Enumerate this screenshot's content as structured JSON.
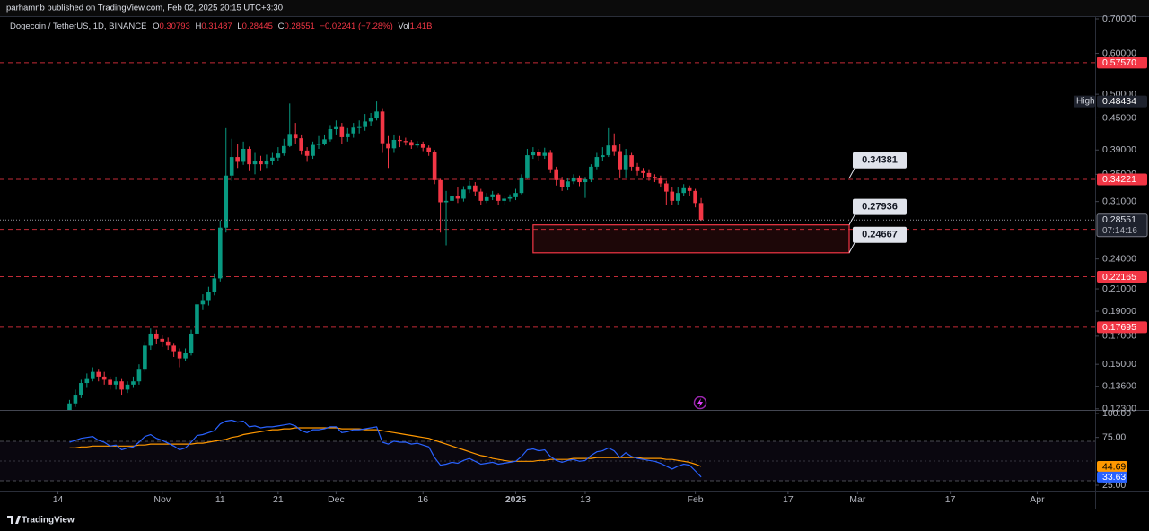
{
  "header": {
    "publisher": "parhamnb published on TradingView.com, Feb 02, 2025 20:15 UTC+3:30"
  },
  "chart_data": {
    "type": "candlestick",
    "title": "Dogecoin / TetherUS, 1D, BINANCE",
    "legend": {
      "o": "O",
      "h": "H",
      "l": "L",
      "c": "C",
      "change": "−0.02241 (−7.28%)",
      "vol_label": "Vol",
      "vol": "1.41B"
    },
    "x": [
      "2024-10-16",
      "2024-10-17",
      "2024-10-18",
      "2024-10-19",
      "2024-10-20",
      "2024-10-21",
      "2024-10-22",
      "2024-10-23",
      "2024-10-24",
      "2024-10-25",
      "2024-10-26",
      "2024-10-27",
      "2024-10-28",
      "2024-10-29",
      "2024-10-30",
      "2024-10-31",
      "2024-11-01",
      "2024-11-02",
      "2024-11-03",
      "2024-11-04",
      "2024-11-05",
      "2024-11-06",
      "2024-11-07",
      "2024-11-08",
      "2024-11-09",
      "2024-11-10",
      "2024-11-11",
      "2024-11-12",
      "2024-11-13",
      "2024-11-14",
      "2024-11-15",
      "2024-11-16",
      "2024-11-17",
      "2024-11-18",
      "2024-11-19",
      "2024-11-20",
      "2024-11-21",
      "2024-11-22",
      "2024-11-23",
      "2024-11-24",
      "2024-11-25",
      "2024-11-26",
      "2024-11-27",
      "2024-11-28",
      "2024-11-29",
      "2024-11-30",
      "2024-12-01",
      "2024-12-02",
      "2024-12-03",
      "2024-12-04",
      "2024-12-05",
      "2024-12-06",
      "2024-12-07",
      "2024-12-08",
      "2024-12-09",
      "2024-12-10",
      "2024-12-11",
      "2024-12-12",
      "2024-12-13",
      "2024-12-14",
      "2024-12-15",
      "2024-12-16",
      "2024-12-17",
      "2024-12-18",
      "2024-12-19",
      "2024-12-20",
      "2024-12-21",
      "2024-12-22",
      "2024-12-23",
      "2024-12-24",
      "2024-12-25",
      "2024-12-26",
      "2024-12-27",
      "2024-12-28",
      "2024-12-29",
      "2024-12-30",
      "2024-12-31",
      "2025-01-01",
      "2025-01-02",
      "2025-01-03",
      "2025-01-04",
      "2025-01-05",
      "2025-01-06",
      "2025-01-07",
      "2025-01-08",
      "2025-01-09",
      "2025-01-10",
      "2025-01-11",
      "2025-01-12",
      "2025-01-13",
      "2025-01-14",
      "2025-01-15",
      "2025-01-16",
      "2025-01-17",
      "2025-01-18",
      "2025-01-19",
      "2025-01-20",
      "2025-01-21",
      "2025-01-22",
      "2025-01-23",
      "2025-01-24",
      "2025-01-25",
      "2025-01-26",
      "2025-01-27",
      "2025-01-28",
      "2025-01-29",
      "2025-01-30",
      "2025-01-31",
      "2025-02-01",
      "2025-02-02"
    ],
    "open": [
      0.121,
      0.126,
      0.131,
      0.138,
      0.141,
      0.145,
      0.142,
      0.14,
      0.137,
      0.139,
      0.134,
      0.137,
      0.139,
      0.147,
      0.163,
      0.172,
      0.168,
      0.166,
      0.163,
      0.159,
      0.154,
      0.158,
      0.172,
      0.196,
      0.199,
      0.207,
      0.22,
      0.276,
      0.348,
      0.378,
      0.37,
      0.392,
      0.366,
      0.372,
      0.366,
      0.372,
      0.377,
      0.384,
      0.397,
      0.419,
      0.411,
      0.389,
      0.38,
      0.399,
      0.401,
      0.409,
      0.428,
      0.432,
      0.413,
      0.42,
      0.431,
      0.432,
      0.443,
      0.449,
      0.463,
      0.402,
      0.393,
      0.408,
      0.406,
      0.404,
      0.398,
      0.401,
      0.394,
      0.387,
      0.341,
      0.309,
      0.311,
      0.318,
      0.314,
      0.327,
      0.333,
      0.324,
      0.311,
      0.316,
      0.32,
      0.311,
      0.314,
      0.316,
      0.322,
      0.345,
      0.381,
      0.386,
      0.38,
      0.385,
      0.358,
      0.341,
      0.331,
      0.339,
      0.345,
      0.338,
      0.342,
      0.362,
      0.378,
      0.381,
      0.398,
      0.388,
      0.358,
      0.381,
      0.362,
      0.355,
      0.352,
      0.346,
      0.344,
      0.336,
      0.324,
      0.311,
      0.322,
      0.329,
      0.325,
      0.30793
    ],
    "high": [
      0.128,
      0.134,
      0.14,
      0.144,
      0.148,
      0.147,
      0.145,
      0.142,
      0.142,
      0.141,
      0.139,
      0.142,
      0.15,
      0.166,
      0.176,
      0.175,
      0.171,
      0.169,
      0.165,
      0.161,
      0.161,
      0.175,
      0.2,
      0.205,
      0.212,
      0.225,
      0.285,
      0.43,
      0.41,
      0.4,
      0.405,
      0.396,
      0.385,
      0.38,
      0.382,
      0.385,
      0.395,
      0.41,
      0.48,
      0.44,
      0.418,
      0.395,
      0.405,
      0.415,
      0.418,
      0.436,
      0.445,
      0.44,
      0.43,
      0.44,
      0.445,
      0.458,
      0.46,
      0.48434,
      0.47,
      0.415,
      0.418,
      0.415,
      0.412,
      0.408,
      0.406,
      0.405,
      0.398,
      0.39,
      0.343,
      0.325,
      0.326,
      0.33,
      0.332,
      0.34,
      0.338,
      0.328,
      0.322,
      0.325,
      0.322,
      0.318,
      0.32,
      0.328,
      0.35,
      0.392,
      0.395,
      0.392,
      0.394,
      0.39,
      0.362,
      0.346,
      0.344,
      0.35,
      0.348,
      0.346,
      0.366,
      0.385,
      0.395,
      0.43,
      0.42,
      0.4,
      0.392,
      0.385,
      0.368,
      0.36,
      0.358,
      0.35,
      0.348,
      0.34,
      0.33,
      0.33,
      0.335,
      0.333,
      0.328,
      0.31487
    ],
    "low": [
      0.119,
      0.124,
      0.129,
      0.135,
      0.139,
      0.139,
      0.137,
      0.134,
      0.134,
      0.131,
      0.132,
      0.135,
      0.137,
      0.145,
      0.16,
      0.164,
      0.162,
      0.16,
      0.155,
      0.148,
      0.152,
      0.156,
      0.17,
      0.191,
      0.195,
      0.204,
      0.217,
      0.27,
      0.34,
      0.36,
      0.365,
      0.355,
      0.35,
      0.355,
      0.36,
      0.365,
      0.372,
      0.38,
      0.395,
      0.4,
      0.382,
      0.37,
      0.375,
      0.392,
      0.398,
      0.405,
      0.418,
      0.4,
      0.405,
      0.412,
      0.42,
      0.425,
      0.435,
      0.445,
      0.385,
      0.36,
      0.385,
      0.395,
      0.398,
      0.392,
      0.394,
      0.388,
      0.38,
      0.335,
      0.27,
      0.255,
      0.305,
      0.308,
      0.31,
      0.322,
      0.318,
      0.305,
      0.308,
      0.312,
      0.305,
      0.306,
      0.31,
      0.312,
      0.32,
      0.343,
      0.375,
      0.372,
      0.375,
      0.352,
      0.333,
      0.325,
      0.326,
      0.335,
      0.332,
      0.315,
      0.338,
      0.358,
      0.372,
      0.378,
      0.38,
      0.345,
      0.345,
      0.355,
      0.348,
      0.345,
      0.34,
      0.338,
      0.33,
      0.305,
      0.305,
      0.306,
      0.318,
      0.318,
      0.302,
      0.28445
    ],
    "close": [
      0.126,
      0.131,
      0.138,
      0.141,
      0.145,
      0.142,
      0.14,
      0.137,
      0.139,
      0.134,
      0.137,
      0.139,
      0.147,
      0.163,
      0.172,
      0.168,
      0.166,
      0.163,
      0.159,
      0.154,
      0.158,
      0.172,
      0.196,
      0.199,
      0.207,
      0.22,
      0.276,
      0.348,
      0.378,
      0.37,
      0.392,
      0.366,
      0.372,
      0.366,
      0.372,
      0.377,
      0.384,
      0.397,
      0.419,
      0.411,
      0.389,
      0.38,
      0.399,
      0.401,
      0.409,
      0.428,
      0.432,
      0.413,
      0.42,
      0.431,
      0.432,
      0.443,
      0.449,
      0.463,
      0.402,
      0.393,
      0.408,
      0.406,
      0.404,
      0.398,
      0.401,
      0.394,
      0.387,
      0.341,
      0.309,
      0.311,
      0.318,
      0.314,
      0.327,
      0.333,
      0.324,
      0.311,
      0.316,
      0.32,
      0.311,
      0.314,
      0.316,
      0.322,
      0.345,
      0.381,
      0.386,
      0.38,
      0.385,
      0.358,
      0.341,
      0.331,
      0.339,
      0.345,
      0.338,
      0.342,
      0.362,
      0.378,
      0.381,
      0.398,
      0.388,
      0.358,
      0.381,
      0.362,
      0.355,
      0.352,
      0.346,
      0.344,
      0.336,
      0.324,
      0.311,
      0.322,
      0.329,
      0.325,
      0.30793,
      0.28551
    ],
    "up_color": "#089981",
    "down_color": "#f23645",
    "log": true,
    "ylim": [
      0.1229,
      0.7
    ],
    "yticks": [
      {
        "value": 0.7,
        "label": "0.70000"
      },
      {
        "value": 0.6,
        "label": "0.60000"
      },
      {
        "value": 0.5,
        "label": "0.50000"
      },
      {
        "value": 0.45,
        "label": "0.45000"
      },
      {
        "value": 0.39,
        "label": "0.39000"
      },
      {
        "value": 0.35,
        "label": "0.35000"
      },
      {
        "value": 0.31,
        "label": "0.31000"
      },
      {
        "value": 0.24,
        "label": "0.24000"
      },
      {
        "value": 0.21,
        "label": "0.21000"
      },
      {
        "value": 0.19,
        "label": "0.19000"
      },
      {
        "value": 0.17,
        "label": "0.17000"
      },
      {
        "value": 0.15,
        "label": "0.15000"
      },
      {
        "value": 0.136,
        "label": "0.13600"
      },
      {
        "value": 0.123,
        "label": "0.12300"
      }
    ],
    "xlim": [
      "2024-10-04",
      "2025-04-11"
    ],
    "xticks": [
      {
        "value": "2024-10-14",
        "label": "14"
      },
      {
        "value": "2024-11-01",
        "label": "Nov"
      },
      {
        "value": "2024-11-11",
        "label": "11"
      },
      {
        "value": "2024-11-21",
        "label": "21"
      },
      {
        "value": "2024-12-01",
        "label": "Dec"
      },
      {
        "value": "2024-12-16",
        "label": "16"
      },
      {
        "value": "2025-01-01",
        "label": "2025"
      },
      {
        "value": "2025-01-13",
        "label": "13"
      },
      {
        "value": "2025-02-01",
        "label": "Feb"
      },
      {
        "value": "2025-02-17",
        "label": "17"
      },
      {
        "value": "2025-03-01",
        "label": "Mar"
      },
      {
        "value": "2025-03-17",
        "label": "17"
      },
      {
        "value": "2025-04-01",
        "label": "Apr"
      }
    ],
    "levels": [
      {
        "value": 0.5757,
        "label": "0.57570"
      },
      0.34221,
      0.27395,
      0.22165,
      0.17695
    ],
    "level_color": "#f23645",
    "countdown": "07:14:16",
    "high_label": "High",
    "callouts": [
      0.34381,
      0.27936,
      0.24667
    ],
    "zone_color": "#f23645",
    "rsi": {
      "color": "#2962ff",
      "ma_color": "#ff9800",
      "values": [
        70,
        72,
        74,
        75,
        76,
        72,
        70,
        66,
        67,
        62,
        64,
        65,
        70,
        76,
        78,
        74,
        72,
        69,
        66,
        62,
        64,
        70,
        77,
        78,
        80,
        82,
        89,
        92,
        93,
        91,
        92,
        86,
        87,
        85,
        86,
        86,
        87,
        88,
        89,
        87,
        82,
        80,
        83,
        83,
        84,
        86,
        86,
        80,
        81,
        83,
        83,
        84,
        85,
        86,
        70,
        68,
        71,
        70,
        70,
        68,
        69,
        67,
        65,
        54,
        46,
        47,
        49,
        48,
        51,
        53,
        50,
        47,
        48,
        49,
        47,
        48,
        49,
        50,
        55,
        62,
        63,
        61,
        62,
        55,
        51,
        49,
        51,
        52,
        50,
        51,
        56,
        60,
        61,
        64,
        61,
        54,
        59,
        55,
        53,
        52,
        51,
        50,
        48,
        45,
        42,
        45,
        47,
        46,
        40,
        33.63
      ],
      "ma": [
        64,
        64,
        65,
        65,
        66,
        66,
        66,
        66,
        66,
        66,
        66,
        66,
        67,
        67,
        68,
        68,
        68,
        68,
        68,
        68,
        68,
        68,
        69,
        69,
        70,
        71,
        72,
        73,
        75,
        76,
        78,
        79,
        80,
        81,
        82,
        83,
        83,
        84,
        84,
        85,
        85,
        85,
        85,
        85,
        85,
        85,
        85,
        84,
        84,
        84,
        84,
        83,
        83,
        83,
        82,
        81,
        80,
        79,
        78,
        77,
        76,
        75,
        74,
        72,
        70,
        68,
        66,
        64,
        62,
        60,
        58,
        56,
        55,
        53,
        52,
        51,
        50,
        50,
        50,
        50,
        50,
        51,
        51,
        52,
        52,
        52,
        52,
        53,
        53,
        53,
        53,
        54,
        54,
        54,
        54,
        54,
        54,
        54,
        54,
        53,
        53,
        53,
        53,
        52,
        52,
        51,
        50,
        49,
        47,
        44.69
      ],
      "ylim": [
        19.4,
        102.8
      ],
      "yticks": [
        {
          "value": 100,
          "label": "100.00"
        },
        {
          "value": 75,
          "label": "75.00"
        },
        {
          "value": 25,
          "label": "25.00"
        }
      ]
    }
  },
  "footer": {
    "brand": "TradingView"
  }
}
